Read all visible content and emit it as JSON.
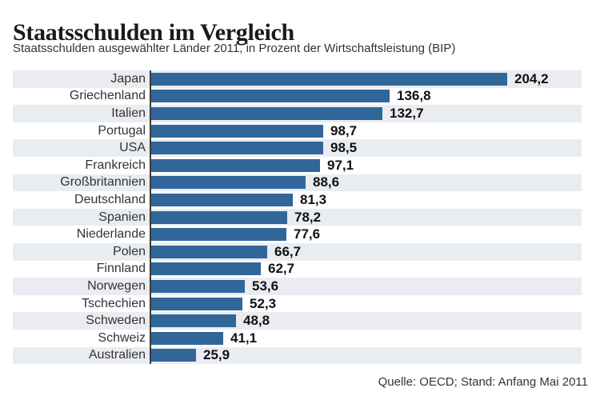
{
  "header": {
    "title": "Staatsschulden im Vergleich",
    "subtitle": "Staatsschulden ausgewählter Länder 2011, in Prozent der Wirtschaftsleistung (BIP)"
  },
  "footer": {
    "source": "Quelle: OECD; Stand: Anfang Mai 2011"
  },
  "colors": {
    "bar": "#31669a",
    "row_alt_background": "#e9edf2",
    "row_plain_background": "#ffffff",
    "axis_line": "#3c3c3c",
    "title_text": "#1a1a1a",
    "body_text": "#333333"
  },
  "chart_data": {
    "type": "bar",
    "orientation": "horizontal",
    "title": "Staatsschulden im Vergleich",
    "subtitle": "Staatsschulden ausgewählter Länder 2011, in Prozent der Wirtschaftsleistung (BIP)",
    "categories": [
      "Japan",
      "Griechenland",
      "Italien",
      "Portugal",
      "USA",
      "Frankreich",
      "Großbritannien",
      "Deutschland",
      "Spanien",
      "Niederlande",
      "Polen",
      "Finnland",
      "Norwegen",
      "Tschechien",
      "Schweden",
      "Schweiz",
      "Australien"
    ],
    "values": [
      204.2,
      136.8,
      132.7,
      98.7,
      98.5,
      97.1,
      88.6,
      81.3,
      78.2,
      77.6,
      66.7,
      62.7,
      53.6,
      52.3,
      48.8,
      41.1,
      25.9
    ],
    "value_labels": [
      "204,2",
      "136,8",
      "132,7",
      "98,7",
      "98,5",
      "97,1",
      "88,6",
      "81,3",
      "78,2",
      "77,6",
      "66,7",
      "62,7",
      "53,6",
      "52,3",
      "48,8",
      "41,1",
      "25,9"
    ],
    "xlabel": "",
    "ylabel": "",
    "xlim": [
      0,
      247
    ],
    "grid": false,
    "legend": false,
    "source": "Quelle: OECD; Stand: Anfang Mai 2011"
  }
}
